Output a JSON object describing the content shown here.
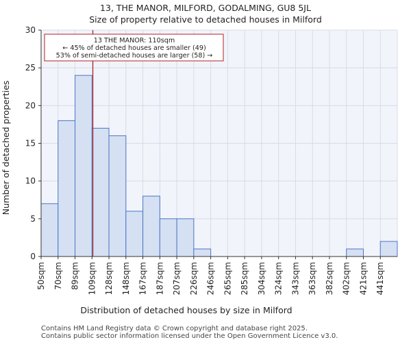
{
  "chart_data": {
    "type": "bar",
    "title": "13, THE MANOR, MILFORD, GODALMING, GU8 5JL",
    "subtitle": "Size of property relative to detached houses in Milford",
    "xlabel": "Distribution of detached houses by size in Milford",
    "ylabel": "Number of detached properties",
    "categories": [
      "50sqm",
      "70sqm",
      "89sqm",
      "109sqm",
      "128sqm",
      "148sqm",
      "167sqm",
      "187sqm",
      "207sqm",
      "226sqm",
      "246sqm",
      "265sqm",
      "285sqm",
      "304sqm",
      "324sqm",
      "343sqm",
      "363sqm",
      "382sqm",
      "402sqm",
      "421sqm",
      "441sqm"
    ],
    "values": [
      7,
      18,
      24,
      17,
      16,
      6,
      8,
      5,
      5,
      1,
      0,
      0,
      0,
      0,
      0,
      0,
      0,
      0,
      1,
      0,
      2
    ],
    "ylim": [
      0,
      30
    ],
    "yticks": [
      0,
      5,
      10,
      15,
      20,
      25,
      30
    ],
    "grid": true,
    "bar_color": "#d6e0f3",
    "bar_edge_color": "#4a76c2",
    "marker": {
      "value_sqm": 110,
      "color": "#b22222",
      "label": "13 THE MANOR: 110sqm",
      "line2": "← 45% of detached houses are smaller (49)",
      "line3": "53% of semi-detached houses are larger (58) →"
    }
  },
  "footer": {
    "line1": "Contains HM Land Registry data © Crown copyright and database right 2025.",
    "line2": "Contains public sector information licensed under the Open Government Licence v3.0."
  }
}
